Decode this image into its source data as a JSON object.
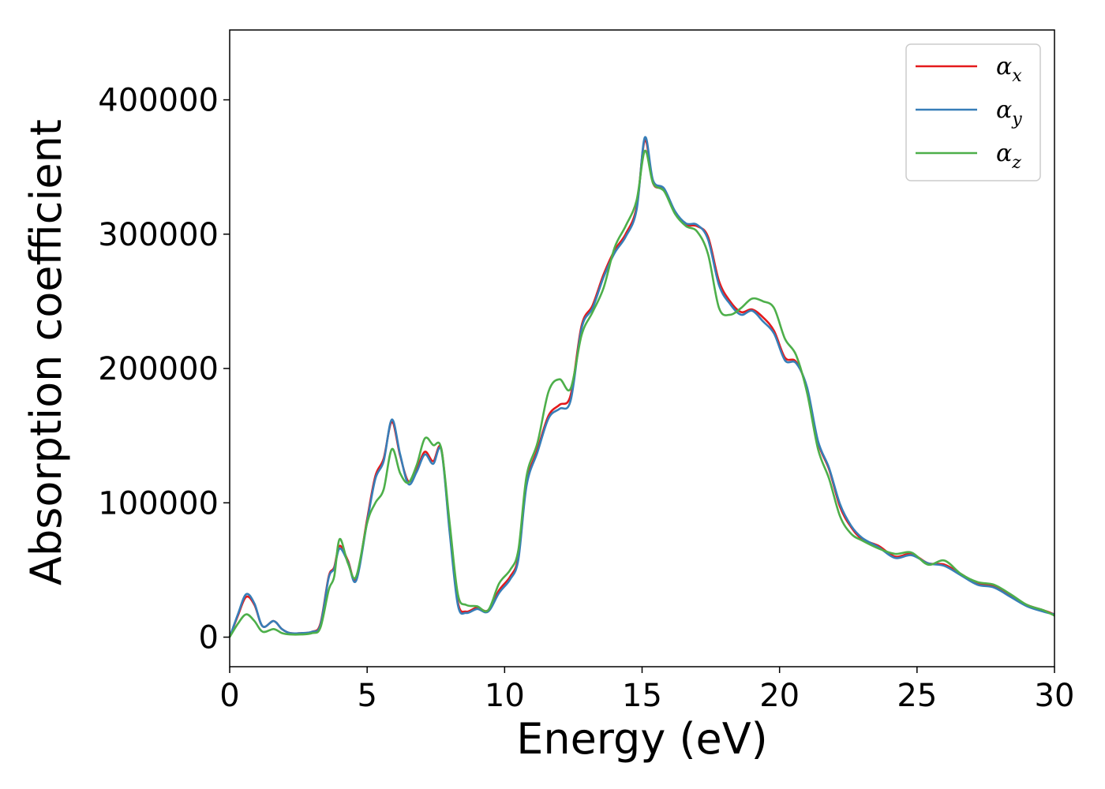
{
  "chart_data": {
    "type": "line",
    "xlabel": "Energy (eV)",
    "ylabel": "Absorption coefficient",
    "xlim": [
      0,
      30
    ],
    "ylim": [
      -22000,
      452000
    ],
    "xticks": [
      0,
      5,
      10,
      15,
      20,
      25,
      30
    ],
    "xtick_labels": [
      "0",
      "5",
      "10",
      "15",
      "20",
      "25",
      "30"
    ],
    "yticks": [
      0,
      100000,
      200000,
      300000,
      400000
    ],
    "ytick_labels": [
      "0",
      "100000",
      "200000",
      "300000",
      "400000"
    ],
    "grid": false,
    "legend_position": "top-right",
    "series": [
      {
        "name": "α",
        "subscript": "x",
        "color": "#e41a1c",
        "x": [
          0,
          0.3,
          0.6,
          0.9,
          1.2,
          1.6,
          1.9,
          2.2,
          2.6,
          3.0,
          3.3,
          3.6,
          3.8,
          4.0,
          4.3,
          4.6,
          5.0,
          5.3,
          5.6,
          5.9,
          6.2,
          6.5,
          6.8,
          7.1,
          7.4,
          7.7,
          8.0,
          8.3,
          8.6,
          9.0,
          9.4,
          9.8,
          10.2,
          10.5,
          10.8,
          11.2,
          11.6,
          12.0,
          12.4,
          12.8,
          13.2,
          13.6,
          14.0,
          14.4,
          14.8,
          15.1,
          15.4,
          15.8,
          16.2,
          16.6,
          17.0,
          17.4,
          17.8,
          18.2,
          18.6,
          19.0,
          19.4,
          19.8,
          20.2,
          20.6,
          21.0,
          21.4,
          21.8,
          22.2,
          22.6,
          23.0,
          23.6,
          24.2,
          24.8,
          25.4,
          26.0,
          26.6,
          27.2,
          27.8,
          28.4,
          29.0,
          29.6,
          30.0
        ],
        "values": [
          0,
          16000,
          30000,
          24000,
          8000,
          12000,
          6000,
          3000,
          3000,
          4000,
          10000,
          45000,
          52000,
          68000,
          57000,
          43000,
          88000,
          120000,
          133000,
          160000,
          135000,
          116000,
          125000,
          138000,
          131000,
          140000,
          80000,
          26000,
          19000,
          22000,
          20000,
          35000,
          45000,
          60000,
          115000,
          140000,
          165000,
          173000,
          180000,
          232000,
          247000,
          270000,
          288000,
          300000,
          320000,
          370000,
          338000,
          333000,
          316000,
          307000,
          306000,
          298000,
          265000,
          250000,
          242000,
          244000,
          238000,
          228000,
          208000,
          205000,
          185000,
          145000,
          125000,
          97000,
          82000,
          73000,
          68000,
          60000,
          62000,
          55000,
          54000,
          47000,
          40000,
          38000,
          31000,
          24000,
          20000,
          17000
        ]
      },
      {
        "name": "α",
        "subscript": "y",
        "color": "#377eb8",
        "x": [
          0,
          0.3,
          0.6,
          0.9,
          1.2,
          1.6,
          1.9,
          2.2,
          2.6,
          3.0,
          3.3,
          3.6,
          3.8,
          4.0,
          4.3,
          4.6,
          5.0,
          5.3,
          5.6,
          5.9,
          6.2,
          6.5,
          6.8,
          7.1,
          7.4,
          7.7,
          8.0,
          8.3,
          8.6,
          9.0,
          9.4,
          9.8,
          10.2,
          10.5,
          10.8,
          11.2,
          11.6,
          12.0,
          12.4,
          12.8,
          13.2,
          13.6,
          14.0,
          14.4,
          14.8,
          15.1,
          15.4,
          15.8,
          16.2,
          16.6,
          17.0,
          17.4,
          17.8,
          18.2,
          18.6,
          19.0,
          19.4,
          19.8,
          20.2,
          20.6,
          21.0,
          21.4,
          21.8,
          22.2,
          22.6,
          23.0,
          23.6,
          24.2,
          24.8,
          25.4,
          26.0,
          26.6,
          27.2,
          27.8,
          28.4,
          29.0,
          29.6,
          30.0
        ],
        "values": [
          0,
          17000,
          32000,
          25000,
          8000,
          12000,
          6000,
          3000,
          3000,
          4000,
          9000,
          44000,
          51000,
          66000,
          56000,
          42000,
          86000,
          118000,
          131000,
          162000,
          136000,
          114000,
          123000,
          136000,
          129000,
          139000,
          78000,
          24000,
          18000,
          21000,
          19000,
          33000,
          43000,
          58000,
          113000,
          138000,
          163000,
          170000,
          176000,
          230000,
          245000,
          268000,
          286000,
          298000,
          318000,
          372000,
          340000,
          334000,
          317000,
          308000,
          307000,
          296000,
          262000,
          248000,
          240000,
          243000,
          235000,
          226000,
          206000,
          204000,
          186000,
          146000,
          126000,
          99000,
          83000,
          74000,
          67000,
          59000,
          61000,
          55000,
          53000,
          46000,
          39000,
          37000,
          30000,
          23000,
          19000,
          17000
        ]
      },
      {
        "name": "α",
        "subscript": "z",
        "color": "#4daf4a",
        "x": [
          0,
          0.3,
          0.6,
          0.9,
          1.2,
          1.6,
          1.9,
          2.2,
          2.6,
          3.0,
          3.3,
          3.6,
          3.8,
          4.0,
          4.3,
          4.6,
          5.0,
          5.3,
          5.6,
          5.9,
          6.2,
          6.5,
          6.8,
          7.1,
          7.4,
          7.7,
          8.0,
          8.3,
          8.6,
          9.0,
          9.4,
          9.8,
          10.2,
          10.5,
          10.8,
          11.2,
          11.6,
          12.0,
          12.4,
          12.8,
          13.2,
          13.6,
          14.0,
          14.4,
          14.8,
          15.1,
          15.4,
          15.8,
          16.2,
          16.6,
          17.0,
          17.4,
          17.8,
          18.2,
          18.6,
          19.0,
          19.4,
          19.8,
          20.2,
          20.6,
          21.0,
          21.4,
          21.8,
          22.2,
          22.6,
          23.0,
          23.6,
          24.2,
          24.8,
          25.4,
          26.0,
          26.6,
          27.2,
          27.8,
          28.4,
          29.0,
          29.6,
          30.0
        ],
        "values": [
          0,
          10000,
          17000,
          12000,
          4000,
          6000,
          3000,
          2000,
          2000,
          3000,
          7000,
          35000,
          45000,
          73000,
          55000,
          45000,
          85000,
          100000,
          110000,
          140000,
          122000,
          115000,
          128000,
          148000,
          143000,
          140000,
          85000,
          32000,
          24000,
          23000,
          20000,
          40000,
          50000,
          65000,
          120000,
          145000,
          183000,
          192000,
          185000,
          225000,
          242000,
          260000,
          290000,
          306000,
          325000,
          362000,
          338000,
          332000,
          315000,
          306000,
          302000,
          285000,
          245000,
          240000,
          245000,
          252000,
          250000,
          245000,
          222000,
          210000,
          182000,
          140000,
          118000,
          90000,
          77000,
          72000,
          66000,
          62000,
          63000,
          54000,
          57000,
          47000,
          41000,
          39000,
          32000,
          24000,
          20000,
          16000
        ]
      }
    ]
  }
}
